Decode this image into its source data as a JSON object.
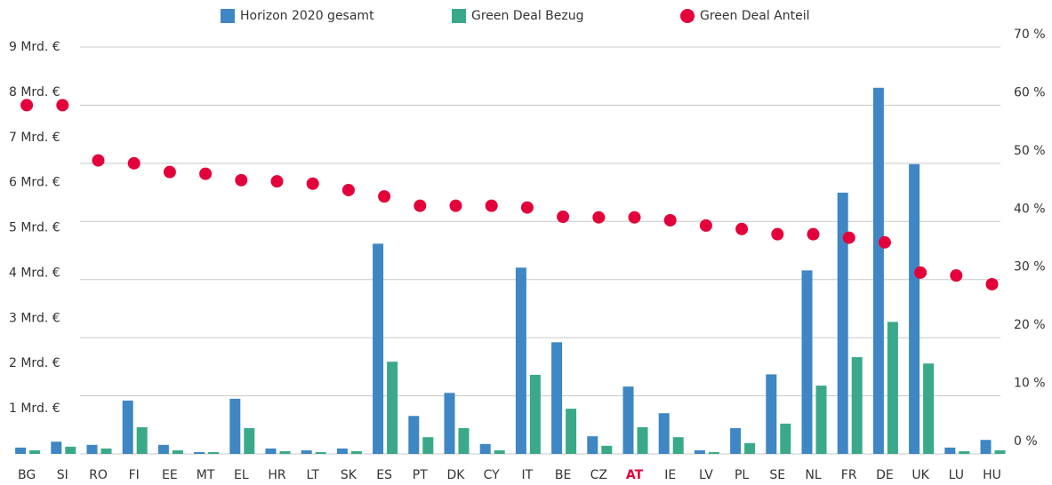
{
  "chart_data": {
    "type": "bar",
    "categories": [
      "BG",
      "SI",
      "RO",
      "FI",
      "EE",
      "MT",
      "EL",
      "HR",
      "LT",
      "SK",
      "ES",
      "PT",
      "DK",
      "CY",
      "IT",
      "BE",
      "CZ",
      "AT",
      "IE",
      "LV",
      "PL",
      "SE",
      "NL",
      "FR",
      "DE",
      "UK",
      "LU",
      "HU"
    ],
    "highlight": "AT",
    "highlight_color": "#e4003a",
    "series": [
      {
        "name": "Horizon 2020 gesamt",
        "color": "#3f86c4",
        "type": "bar",
        "values": [
          0.14,
          0.27,
          0.2,
          1.18,
          0.2,
          0.04,
          1.22,
          0.12,
          0.08,
          0.12,
          4.65,
          0.84,
          1.35,
          0.22,
          4.12,
          2.47,
          0.39,
          1.49,
          0.9,
          0.08,
          0.57,
          1.76,
          4.06,
          5.78,
          8.1,
          6.41,
          0.14,
          0.31
        ]
      },
      {
        "name": "Green Deal Bezug",
        "color": "#3aa98a",
        "type": "bar",
        "values": [
          0.08,
          0.16,
          0.12,
          0.59,
          0.08,
          0.04,
          0.57,
          0.06,
          0.04,
          0.06,
          2.04,
          0.37,
          0.57,
          0.08,
          1.75,
          1.0,
          0.18,
          0.59,
          0.37,
          0.04,
          0.24,
          0.67,
          1.51,
          2.14,
          2.92,
          2.0,
          0.06,
          0.08
        ]
      },
      {
        "name": "Green Deal Anteil",
        "color": "#e4003a",
        "type": "scatter",
        "axis": "y2",
        "values": [
          60,
          60,
          50.5,
          50,
          48.5,
          48.2,
          47.1,
          46.9,
          46.5,
          45.4,
          44.3,
          42.7,
          42.7,
          42.7,
          42.4,
          40.8,
          40.7,
          40.7,
          40.2,
          39.3,
          38.7,
          37.8,
          37.8,
          37.2,
          36.4,
          31.2,
          30.7,
          29.2
        ]
      }
    ],
    "ylim": [
      0,
      9
    ],
    "yticks": [
      {
        "value": 1,
        "label": "1 Mrd. €"
      },
      {
        "value": 2,
        "label": "2 Mrd. €"
      },
      {
        "value": 3,
        "label": "3 Mrd. €"
      },
      {
        "value": 4,
        "label": "4 Mrd. €"
      },
      {
        "value": 5,
        "label": "5 Mrd. €"
      },
      {
        "value": 6,
        "label": "6 Mrd. €"
      },
      {
        "value": 7,
        "label": "7 Mrd. €"
      },
      {
        "value": 8,
        "label": "8 Mrd. €"
      },
      {
        "value": 9,
        "label": "9 Mrd. €"
      }
    ],
    "y2lim": [
      0,
      70
    ],
    "y2ticks": [
      {
        "value": 0,
        "label": "0 %"
      },
      {
        "value": 10,
        "label": "10 %"
      },
      {
        "value": 20,
        "label": "20 %"
      },
      {
        "value": 30,
        "label": "30 %"
      },
      {
        "value": 40,
        "label": "40 %"
      },
      {
        "value": 50,
        "label": "50 %"
      },
      {
        "value": 60,
        "label": "60 %"
      },
      {
        "value": 70,
        "label": "70 %"
      }
    ],
    "grid": true,
    "legend": "top"
  }
}
